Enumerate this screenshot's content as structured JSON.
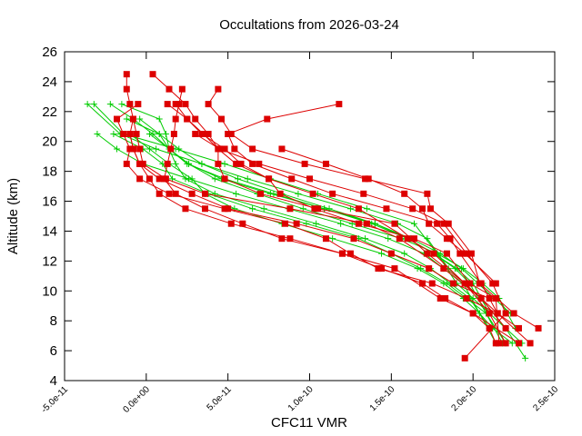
{
  "chart_data": {
    "type": "line",
    "title": "Occultations from 2026-03-24",
    "xlabel": "CFC11 VMR",
    "ylabel": "Altitude (km)",
    "xlim": [
      -5e-11,
      2.5e-10
    ],
    "ylim": [
      4,
      26
    ],
    "x_ticks": [
      -5e-11,
      0,
      5e-11,
      1e-10,
      1.5e-10,
      2e-10,
      2.5e-10
    ],
    "x_tick_labels": [
      "-5.0e-11",
      "0.0e+00",
      "5.0e-11",
      "1.0e-10",
      "1.5e-10",
      "2.0e-10",
      "2.5e-10"
    ],
    "y_ticks": [
      4,
      6,
      8,
      10,
      12,
      14,
      16,
      18,
      20,
      22,
      24,
      26
    ],
    "y_tick_labels": [
      "4",
      "6",
      "8",
      "10",
      "12",
      "14",
      "16",
      "18",
      "20",
      "22",
      "24",
      "26"
    ],
    "grid": false,
    "colors": {
      "red_series": "#dd0000",
      "green_series": "#00cc00"
    },
    "series": [
      {
        "name": "red-1",
        "color": "#dd0000",
        "marker": "square",
        "x": [
          1.18e-10,
          7.4e-11,
          5e-11,
          5.4e-11,
          6.5e-11,
          8.9e-11,
          1.14e-10,
          1.47e-10,
          1.78e-10,
          1.86e-10,
          1.92e-10,
          2.05e-10,
          2.15e-10,
          2.28e-10
        ],
        "y": [
          22.5,
          21.5,
          20.5,
          19.5,
          18.5,
          17.5,
          16.5,
          15.5,
          14.5,
          13.5,
          12.5,
          10.5,
          8.5,
          7.5
        ]
      },
      {
        "name": "red-2",
        "color": "#dd0000",
        "marker": "square",
        "x": [
          -1.2e-11,
          -1.2e-11,
          -1e-11,
          -8e-12,
          -6e-12,
          -4e-12,
          -2e-12,
          1.2e-11,
          3.6e-11,
          8.8e-11,
          1.35e-10,
          1.55e-10,
          1.82e-10,
          2.05e-10,
          2.2e-10
        ],
        "y": [
          24.5,
          23.5,
          22.5,
          21.5,
          20.5,
          19.5,
          18.5,
          17.5,
          16.5,
          15.5,
          14.5,
          13.5,
          11.5,
          9.5,
          7.5
        ]
      },
      {
        "name": "red-3",
        "color": "#dd0000",
        "marker": "square",
        "x": [
          4e-12,
          1.4e-11,
          2.4e-11,
          3e-11,
          3.8e-11,
          4.4e-11,
          4.4e-11,
          4.8e-11,
          7e-11,
          1.05e-10,
          1.52e-10,
          1.72e-10,
          1.95e-10,
          2.15e-10,
          2.35e-10
        ],
        "y": [
          24.5,
          23.5,
          22.5,
          21.5,
          20.5,
          19.5,
          18.5,
          17.5,
          16.5,
          15.5,
          14.5,
          12.5,
          10.5,
          8.5,
          6.5
        ]
      },
      {
        "name": "red-4",
        "color": "#dd0000",
        "marker": "square",
        "x": [
          2.2e-11,
          2e-11,
          1.8e-11,
          1.7e-11,
          1.5e-11,
          1.3e-11,
          1.1e-11,
          1.8e-11,
          3.6e-11,
          5.9e-11,
          8.3e-11,
          1.2e-10,
          1.52e-10,
          1.8e-10,
          2e-10,
          2.28e-10
        ],
        "y": [
          23.5,
          22.5,
          21.5,
          20.5,
          19.5,
          18.5,
          17.5,
          16.5,
          15.5,
          14.5,
          13.5,
          12.5,
          11.5,
          9.5,
          8.5,
          6.5
        ]
      },
      {
        "name": "red-5",
        "color": "#dd0000",
        "marker": "square",
        "x": [
          4.4e-11,
          3.8e-11,
          4.6e-11,
          5.2e-11,
          6.5e-11,
          9.7e-11,
          1.34e-10,
          1.72e-10,
          1.74e-10,
          1.85e-10,
          1.99e-10,
          2.04e-10,
          2.25e-10,
          2.4e-10
        ],
        "y": [
          23.5,
          22.5,
          21.5,
          20.5,
          19.5,
          18.5,
          17.5,
          16.5,
          15.5,
          14.5,
          12.5,
          10.5,
          8.5,
          7.5
        ]
      },
      {
        "name": "red-6",
        "color": "#dd0000",
        "marker": "square",
        "x": [
          1.3e-11,
          2.5e-11,
          3.4e-11,
          4.8e-11,
          5.8e-11,
          7.5e-11,
          1.02e-10,
          1.3e-10,
          1.6e-10,
          1.76e-10,
          1.95e-10,
          2.1e-10,
          2.2e-10
        ],
        "y": [
          22.5,
          21.5,
          20.5,
          19.5,
          18.5,
          17.5,
          16.5,
          15.5,
          13.5,
          12.5,
          10.5,
          8.5,
          6.5
        ]
      },
      {
        "name": "red-7",
        "color": "#dd0000",
        "marker": "square",
        "x": [
          -5e-12,
          -1.8e-11,
          -1.4e-11,
          -1e-11,
          -1.2e-11,
          -4e-12,
          1.4e-11,
          4.8e-11,
          8.5e-11,
          1.1e-10,
          1.25e-10,
          1.42e-10,
          1.75e-10,
          1.96e-10,
          2.15e-10
        ],
        "y": [
          22.5,
          21.5,
          20.5,
          19.5,
          18.5,
          17.5,
          16.5,
          15.5,
          14.5,
          13.5,
          12.5,
          11.5,
          10.5,
          9.5,
          8.5
        ]
      },
      {
        "name": "red-8",
        "color": "#dd0000",
        "marker": "square",
        "x": [
          1.8e-11,
          2.5e-11,
          3.5e-11,
          4.4e-11,
          5.5e-11,
          7.5e-11,
          8.2e-11,
          1.03e-10,
          1.3e-10,
          1.64e-10,
          1.84e-10,
          1.98e-10,
          2.14e-10,
          2.16e-10
        ],
        "y": [
          22.5,
          21.5,
          20.5,
          19.5,
          18.5,
          17.5,
          16.5,
          15.5,
          14.5,
          13.5,
          12.5,
          10.5,
          9.5,
          6.5
        ]
      },
      {
        "name": "red-9",
        "color": "#dd0000",
        "marker": "square",
        "x": [
          -8e-12,
          -1e-11,
          -8e-12,
          -4e-12,
          8e-12,
          2.8e-11,
          5e-11,
          9.2e-11,
          1.27e-10,
          1.5e-10,
          1.73e-10,
          1.88e-10,
          2.1e-10
        ],
        "y": [
          21.5,
          20.5,
          19.5,
          18.5,
          17.5,
          16.5,
          15.5,
          14.5,
          13.5,
          12.5,
          11.5,
          10.5,
          9.5
        ]
      },
      {
        "name": "red-10",
        "color": "#dd0000",
        "marker": "square",
        "x": [
          -1e-11,
          -8e-12,
          -4e-12,
          2e-12,
          8e-12,
          2.4e-11,
          5.2e-11,
          8.8e-11,
          1.2e-10,
          1.44e-10,
          1.69e-10,
          1.83e-10,
          2e-10,
          2.1e-10,
          2.14e-10
        ],
        "y": [
          20.5,
          19.5,
          18.5,
          17.5,
          16.5,
          15.5,
          14.5,
          13.5,
          12.5,
          11.5,
          10.5,
          9.5,
          8.5,
          7.5,
          6.5
        ]
      },
      {
        "name": "red-11",
        "color": "#dd0000",
        "marker": "square",
        "x": [
          8.3e-11,
          1.1e-10,
          1.36e-10,
          1.58e-10,
          1.69e-10,
          1.73e-10,
          1.84e-10,
          1.95e-10,
          2.14e-10
        ],
        "y": [
          19.5,
          18.5,
          17.5,
          16.5,
          15.5,
          14.5,
          13.5,
          12.5,
          10.5
        ]
      },
      {
        "name": "red-12",
        "color": "#dd0000",
        "marker": "square",
        "x": [
          3e-11,
          4.5e-11,
          6.9e-11,
          1e-10,
          1.33e-10,
          1.63e-10,
          1.82e-10,
          1.96e-10,
          2.12e-10,
          2.2e-10,
          1.95e-10
        ],
        "y": [
          20.5,
          19.5,
          18.5,
          17.5,
          16.5,
          15.5,
          14.5,
          12.5,
          10.5,
          8.5,
          5.5
        ]
      }
    ],
    "green_series": [
      {
        "name": "green-1",
        "color": "#00cc00",
        "marker": "plus",
        "x": [
          -3.2e-11,
          -1.4e-11,
          1.8e-11,
          4.8e-11,
          7.6e-11,
          1.05e-10,
          1.35e-10,
          1.64e-10,
          1.78e-10,
          1.9e-10,
          2e-10,
          2.1e-10,
          2.2e-10,
          2.3e-10
        ],
        "y": [
          22.5,
          20.5,
          19.5,
          18.5,
          17.5,
          16.5,
          15.5,
          14.5,
          12.5,
          10.5,
          9.5,
          8.5,
          7.5,
          6.5
        ]
      },
      {
        "name": "green-2",
        "color": "#00cc00",
        "marker": "plus",
        "x": [
          -3.6e-11,
          -1.6e-11,
          6e-12,
          3.4e-11,
          6.2e-11,
          9.3e-11,
          1.25e-10,
          1.54e-10,
          1.72e-10,
          1.85e-10,
          1.95e-10,
          2.05e-10,
          2.2e-10,
          2.32e-10
        ],
        "y": [
          22.5,
          20.5,
          19.5,
          18.5,
          17.5,
          16.5,
          15.5,
          14.5,
          13.5,
          11.5,
          10.5,
          9.5,
          7.5,
          5.5
        ]
      },
      {
        "name": "green-3",
        "color": "#00cc00",
        "marker": "plus",
        "x": [
          -3e-11,
          -1.8e-11,
          -2e-12,
          2.6e-11,
          5.5e-11,
          8.7e-11,
          1.19e-10,
          1.48e-10,
          1.7e-10,
          1.82e-10,
          1.94e-10,
          2.04e-10,
          2.12e-10,
          2.24e-10
        ],
        "y": [
          20.5,
          19.5,
          18.5,
          17.5,
          16.5,
          15.5,
          14.5,
          13.5,
          12.5,
          11.5,
          10.5,
          8.5,
          7.5,
          6.5
        ]
      },
      {
        "name": "green-4",
        "color": "#00cc00",
        "marker": "plus",
        "x": [
          -1.2e-11,
          8e-12,
          1.4e-11,
          2.5e-11,
          4.8e-11,
          7.8e-11,
          1.09e-10,
          1.4e-10,
          1.6e-10,
          1.76e-10,
          1.89e-10,
          1.98e-10,
          2.08e-10,
          2.18e-10
        ],
        "y": [
          21.5,
          20.5,
          19.5,
          18.5,
          17.5,
          16.5,
          15.5,
          14.5,
          13.5,
          12.5,
          11.5,
          10.5,
          8.5,
          6.5
        ]
      },
      {
        "name": "green-5",
        "color": "#00cc00",
        "marker": "plus",
        "x": [
          -2e-11,
          -2e-12,
          1e-11,
          1.6e-11,
          3.8e-11,
          6.5e-11,
          9.8e-11,
          1.3e-10,
          1.5e-10,
          1.68e-10,
          1.84e-10,
          1.96e-10,
          2.08e-10,
          2.2e-10
        ],
        "y": [
          20.5,
          19.5,
          18.5,
          17.5,
          16.5,
          15.5,
          14.5,
          13.5,
          12.5,
          11.5,
          10.5,
          9.5,
          8.5,
          6.5
        ]
      },
      {
        "name": "green-6",
        "color": "#00cc00",
        "marker": "plus",
        "x": [
          -2.2e-11,
          -8e-12,
          4e-12,
          1.4e-11,
          2.6e-11,
          4.6e-11,
          7.6e-11,
          1.09e-10,
          1.38e-10,
          1.6e-10,
          1.76e-10,
          1.9e-10,
          2e-10,
          2.1e-10
        ],
        "y": [
          22.5,
          21.5,
          20.5,
          19.5,
          18.5,
          17.5,
          16.5,
          15.5,
          14.5,
          13.5,
          12.5,
          11.5,
          10.5,
          8.5
        ]
      },
      {
        "name": "green-7",
        "color": "#00cc00",
        "marker": "plus",
        "x": [
          -4e-12,
          8e-12,
          2e-11,
          3.4e-11,
          5.6e-11,
          8.3e-11,
          1.12e-10,
          1.4e-10,
          1.62e-10,
          1.8e-10,
          1.93e-10,
          2.03e-10,
          2.13e-10,
          2.23e-10
        ],
        "y": [
          21.5,
          20.5,
          19.5,
          18.5,
          17.5,
          16.5,
          15.5,
          14.5,
          13.5,
          12.5,
          11.5,
          10.5,
          9.5,
          8.5
        ]
      },
      {
        "name": "green-8",
        "color": "#00cc00",
        "marker": "plus",
        "x": [
          -1e-11,
          2e-12,
          1.4e-11,
          2.8e-11,
          3.6e-11,
          5.4e-11,
          8.3e-11,
          1.14e-10,
          1.44e-10,
          1.66e-10,
          1.82e-10,
          1.94e-10,
          2.04e-10,
          2.14e-10
        ],
        "y": [
          20.5,
          19.5,
          18.5,
          17.5,
          16.5,
          15.5,
          14.5,
          13.5,
          12.5,
          11.5,
          10.5,
          9.5,
          8.5,
          6.5
        ]
      },
      {
        "name": "green-9",
        "color": "#00cc00",
        "marker": "plus",
        "x": [
          2e-12,
          1.4e-11,
          2.6e-11,
          4.2e-11,
          6.8e-11,
          9.6e-11,
          1.26e-10,
          1.56e-10,
          1.78e-10,
          1.94e-10,
          2.06e-10,
          2.16e-10,
          2.26e-10
        ],
        "y": [
          20.5,
          19.5,
          18.5,
          17.5,
          16.5,
          15.5,
          14.5,
          13.5,
          12.5,
          11.5,
          10.5,
          9.5,
          7.5
        ]
      },
      {
        "name": "green-10",
        "color": "#00cc00",
        "marker": "plus",
        "x": [
          -1.5e-11,
          8e-12,
          1.2e-11,
          1.4e-11,
          1.8e-11,
          2.4e-11,
          4.2e-11,
          7.2e-11,
          1.04e-10,
          1.34e-10,
          1.58e-10,
          1.74e-10,
          1.86e-10,
          1.98e-10,
          2.1e-10
        ],
        "y": [
          22.5,
          21.5,
          20.5,
          19.5,
          18.5,
          17.5,
          16.5,
          15.5,
          14.5,
          13.5,
          12.5,
          11.5,
          10.5,
          9.5,
          7.5
        ]
      }
    ]
  }
}
